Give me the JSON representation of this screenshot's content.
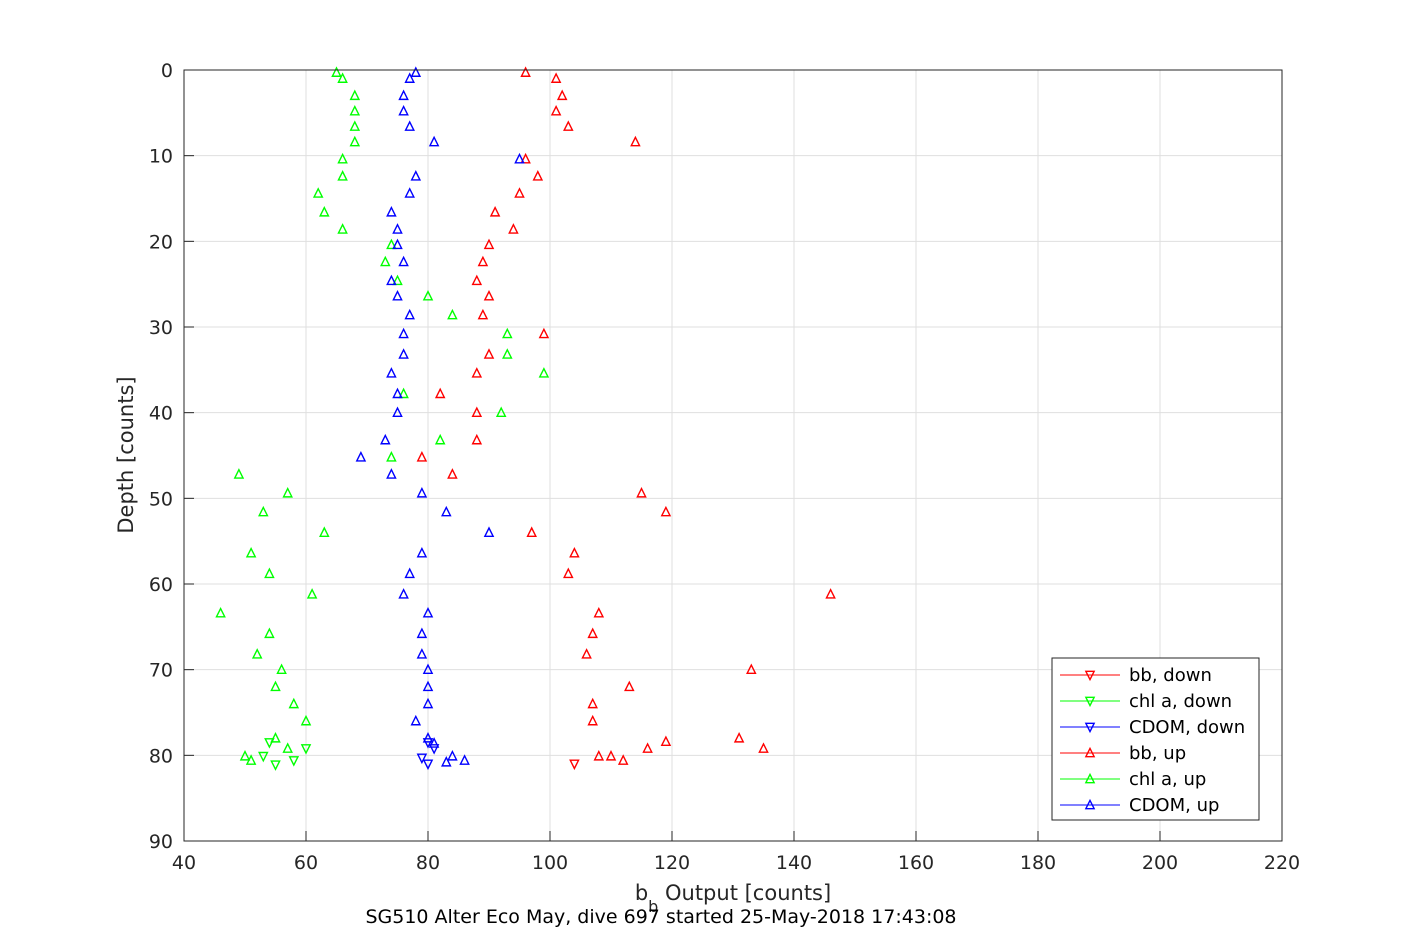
{
  "chart_data": {
    "type": "scatter",
    "title": "",
    "xlabel": "b_b Output [counts]",
    "xlabel_main": "b",
    "xlabel_sub": "b",
    "xlabel_rest": " Output [counts]",
    "ylabel": "Depth [counts]",
    "caption": "SG510 Alter Eco May, dive 697 started 25-May-2018 17:43:08",
    "xlim": [
      40,
      220
    ],
    "ylim": [
      0,
      90
    ],
    "y_reversed": true,
    "xticks": [
      40,
      60,
      80,
      100,
      120,
      140,
      160,
      180,
      200,
      220
    ],
    "yticks": [
      0,
      10,
      20,
      30,
      40,
      50,
      60,
      70,
      80,
      90
    ],
    "grid": true,
    "legend_position": "bottom-right",
    "series": [
      {
        "name": "bb, down",
        "color": "#ff0000",
        "marker": "triangle-down",
        "points": [
          [
            104,
            81
          ]
        ]
      },
      {
        "name": "chl a, down",
        "color": "#00ff00",
        "marker": "triangle-down",
        "points": [
          [
            58,
            80.6
          ],
          [
            53,
            80.1
          ],
          [
            55,
            81.1
          ],
          [
            60,
            79.2
          ],
          [
            54,
            78.5
          ]
        ]
      },
      {
        "name": "CDOM, down",
        "color": "#0000ff",
        "marker": "triangle-down",
        "points": [
          [
            80,
            81.0
          ],
          [
            79,
            80.3
          ],
          [
            81,
            79.2
          ],
          [
            80,
            78.5
          ]
        ]
      },
      {
        "name": "bb, up",
        "color": "#ff0000",
        "marker": "triangle-up",
        "points": [
          [
            96,
            0.3
          ],
          [
            101,
            1.0
          ],
          [
            102,
            3.0
          ],
          [
            101,
            4.8
          ],
          [
            103,
            6.6
          ],
          [
            114,
            8.4
          ],
          [
            96,
            10.4
          ],
          [
            98,
            12.4
          ],
          [
            95,
            14.4
          ],
          [
            91,
            16.6
          ],
          [
            94,
            18.6
          ],
          [
            90,
            20.4
          ],
          [
            89,
            22.4
          ],
          [
            88,
            24.6
          ],
          [
            90,
            26.4
          ],
          [
            89,
            28.6
          ],
          [
            99,
            30.8
          ],
          [
            90,
            33.2
          ],
          [
            88,
            35.4
          ],
          [
            82,
            37.8
          ],
          [
            88,
            40.0
          ],
          [
            88,
            43.2
          ],
          [
            79,
            45.2
          ],
          [
            84,
            47.2
          ],
          [
            115,
            49.4
          ],
          [
            119,
            51.6
          ],
          [
            97,
            54.0
          ],
          [
            104,
            56.4
          ],
          [
            103,
            58.8
          ],
          [
            146,
            61.2
          ],
          [
            108,
            63.4
          ],
          [
            107,
            65.8
          ],
          [
            106,
            68.2
          ],
          [
            133,
            70.0
          ],
          [
            113,
            72.0
          ],
          [
            107,
            74.0
          ],
          [
            107,
            76.0
          ],
          [
            131,
            78.0
          ],
          [
            119,
            78.4
          ],
          [
            135,
            79.2
          ],
          [
            116,
            79.2
          ],
          [
            108,
            80.1
          ],
          [
            110,
            80.1
          ],
          [
            112,
            80.6
          ]
        ]
      },
      {
        "name": "chl a, up",
        "color": "#00ff00",
        "marker": "triangle-up",
        "points": [
          [
            65,
            0.3
          ],
          [
            66,
            1.0
          ],
          [
            68,
            3.0
          ],
          [
            68,
            4.8
          ],
          [
            68,
            6.6
          ],
          [
            68,
            8.4
          ],
          [
            66,
            10.4
          ],
          [
            66,
            12.4
          ],
          [
            62,
            14.4
          ],
          [
            63,
            16.6
          ],
          [
            66,
            18.6
          ],
          [
            74,
            20.4
          ],
          [
            73,
            22.4
          ],
          [
            75,
            24.6
          ],
          [
            80,
            26.4
          ],
          [
            84,
            28.6
          ],
          [
            93,
            30.8
          ],
          [
            93,
            33.2
          ],
          [
            99,
            35.4
          ],
          [
            76,
            37.8
          ],
          [
            92,
            40.0
          ],
          [
            82,
            43.2
          ],
          [
            74,
            45.2
          ],
          [
            49,
            47.2
          ],
          [
            57,
            49.4
          ],
          [
            53,
            51.6
          ],
          [
            63,
            54.0
          ],
          [
            51,
            56.4
          ],
          [
            54,
            58.8
          ],
          [
            61,
            61.2
          ],
          [
            46,
            63.4
          ],
          [
            54,
            65.8
          ],
          [
            52,
            68.2
          ],
          [
            56,
            70.0
          ],
          [
            55,
            72.0
          ],
          [
            58,
            74.0
          ],
          [
            60,
            76.0
          ],
          [
            55,
            78.0
          ],
          [
            57,
            79.2
          ],
          [
            50,
            80.1
          ],
          [
            51,
            80.6
          ]
        ]
      },
      {
        "name": "CDOM, up",
        "color": "#0000ff",
        "marker": "triangle-up",
        "points": [
          [
            78,
            0.3
          ],
          [
            77,
            1.0
          ],
          [
            76,
            3.0
          ],
          [
            76,
            4.8
          ],
          [
            77,
            6.6
          ],
          [
            81,
            8.4
          ],
          [
            95,
            10.4
          ],
          [
            78,
            12.4
          ],
          [
            77,
            14.4
          ],
          [
            74,
            16.6
          ],
          [
            75,
            18.6
          ],
          [
            75,
            20.4
          ],
          [
            76,
            22.4
          ],
          [
            74,
            24.6
          ],
          [
            75,
            26.4
          ],
          [
            77,
            28.6
          ],
          [
            76,
            30.8
          ],
          [
            76,
            33.2
          ],
          [
            74,
            35.4
          ],
          [
            75,
            37.8
          ],
          [
            75,
            40.0
          ],
          [
            73,
            43.2
          ],
          [
            69,
            45.2
          ],
          [
            74,
            47.2
          ],
          [
            79,
            49.4
          ],
          [
            83,
            51.6
          ],
          [
            90,
            54.0
          ],
          [
            79,
            56.4
          ],
          [
            77,
            58.8
          ],
          [
            76,
            61.2
          ],
          [
            80,
            63.4
          ],
          [
            79,
            65.8
          ],
          [
            79,
            68.2
          ],
          [
            80,
            70.0
          ],
          [
            80,
            72.0
          ],
          [
            80,
            74.0
          ],
          [
            78,
            76.0
          ],
          [
            80,
            78.0
          ],
          [
            81,
            78.6
          ],
          [
            84,
            80.1
          ],
          [
            86,
            80.6
          ],
          [
            83,
            80.8
          ]
        ]
      }
    ]
  }
}
